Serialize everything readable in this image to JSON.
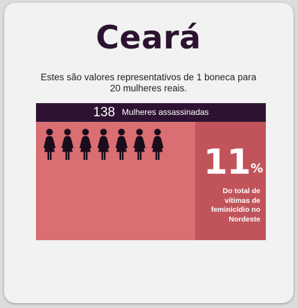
{
  "title": "Ceará",
  "subtitle": "Estes são valores representativos de 1 boneca para 20 mulheres reais.",
  "header": {
    "count": "138",
    "label": "Mulheres assassinadas"
  },
  "dolls": {
    "count": 7,
    "icon": "woman-figure-icon"
  },
  "stat": {
    "value": "11",
    "unit": "%",
    "description": "Do total de vítimas de feminicídio no Nordeste"
  },
  "colors": {
    "dark_purple": "#2d1331",
    "panel_pink": "#d96e73",
    "stat_red": "#c0545a",
    "card_bg": "#f2f2f2"
  }
}
